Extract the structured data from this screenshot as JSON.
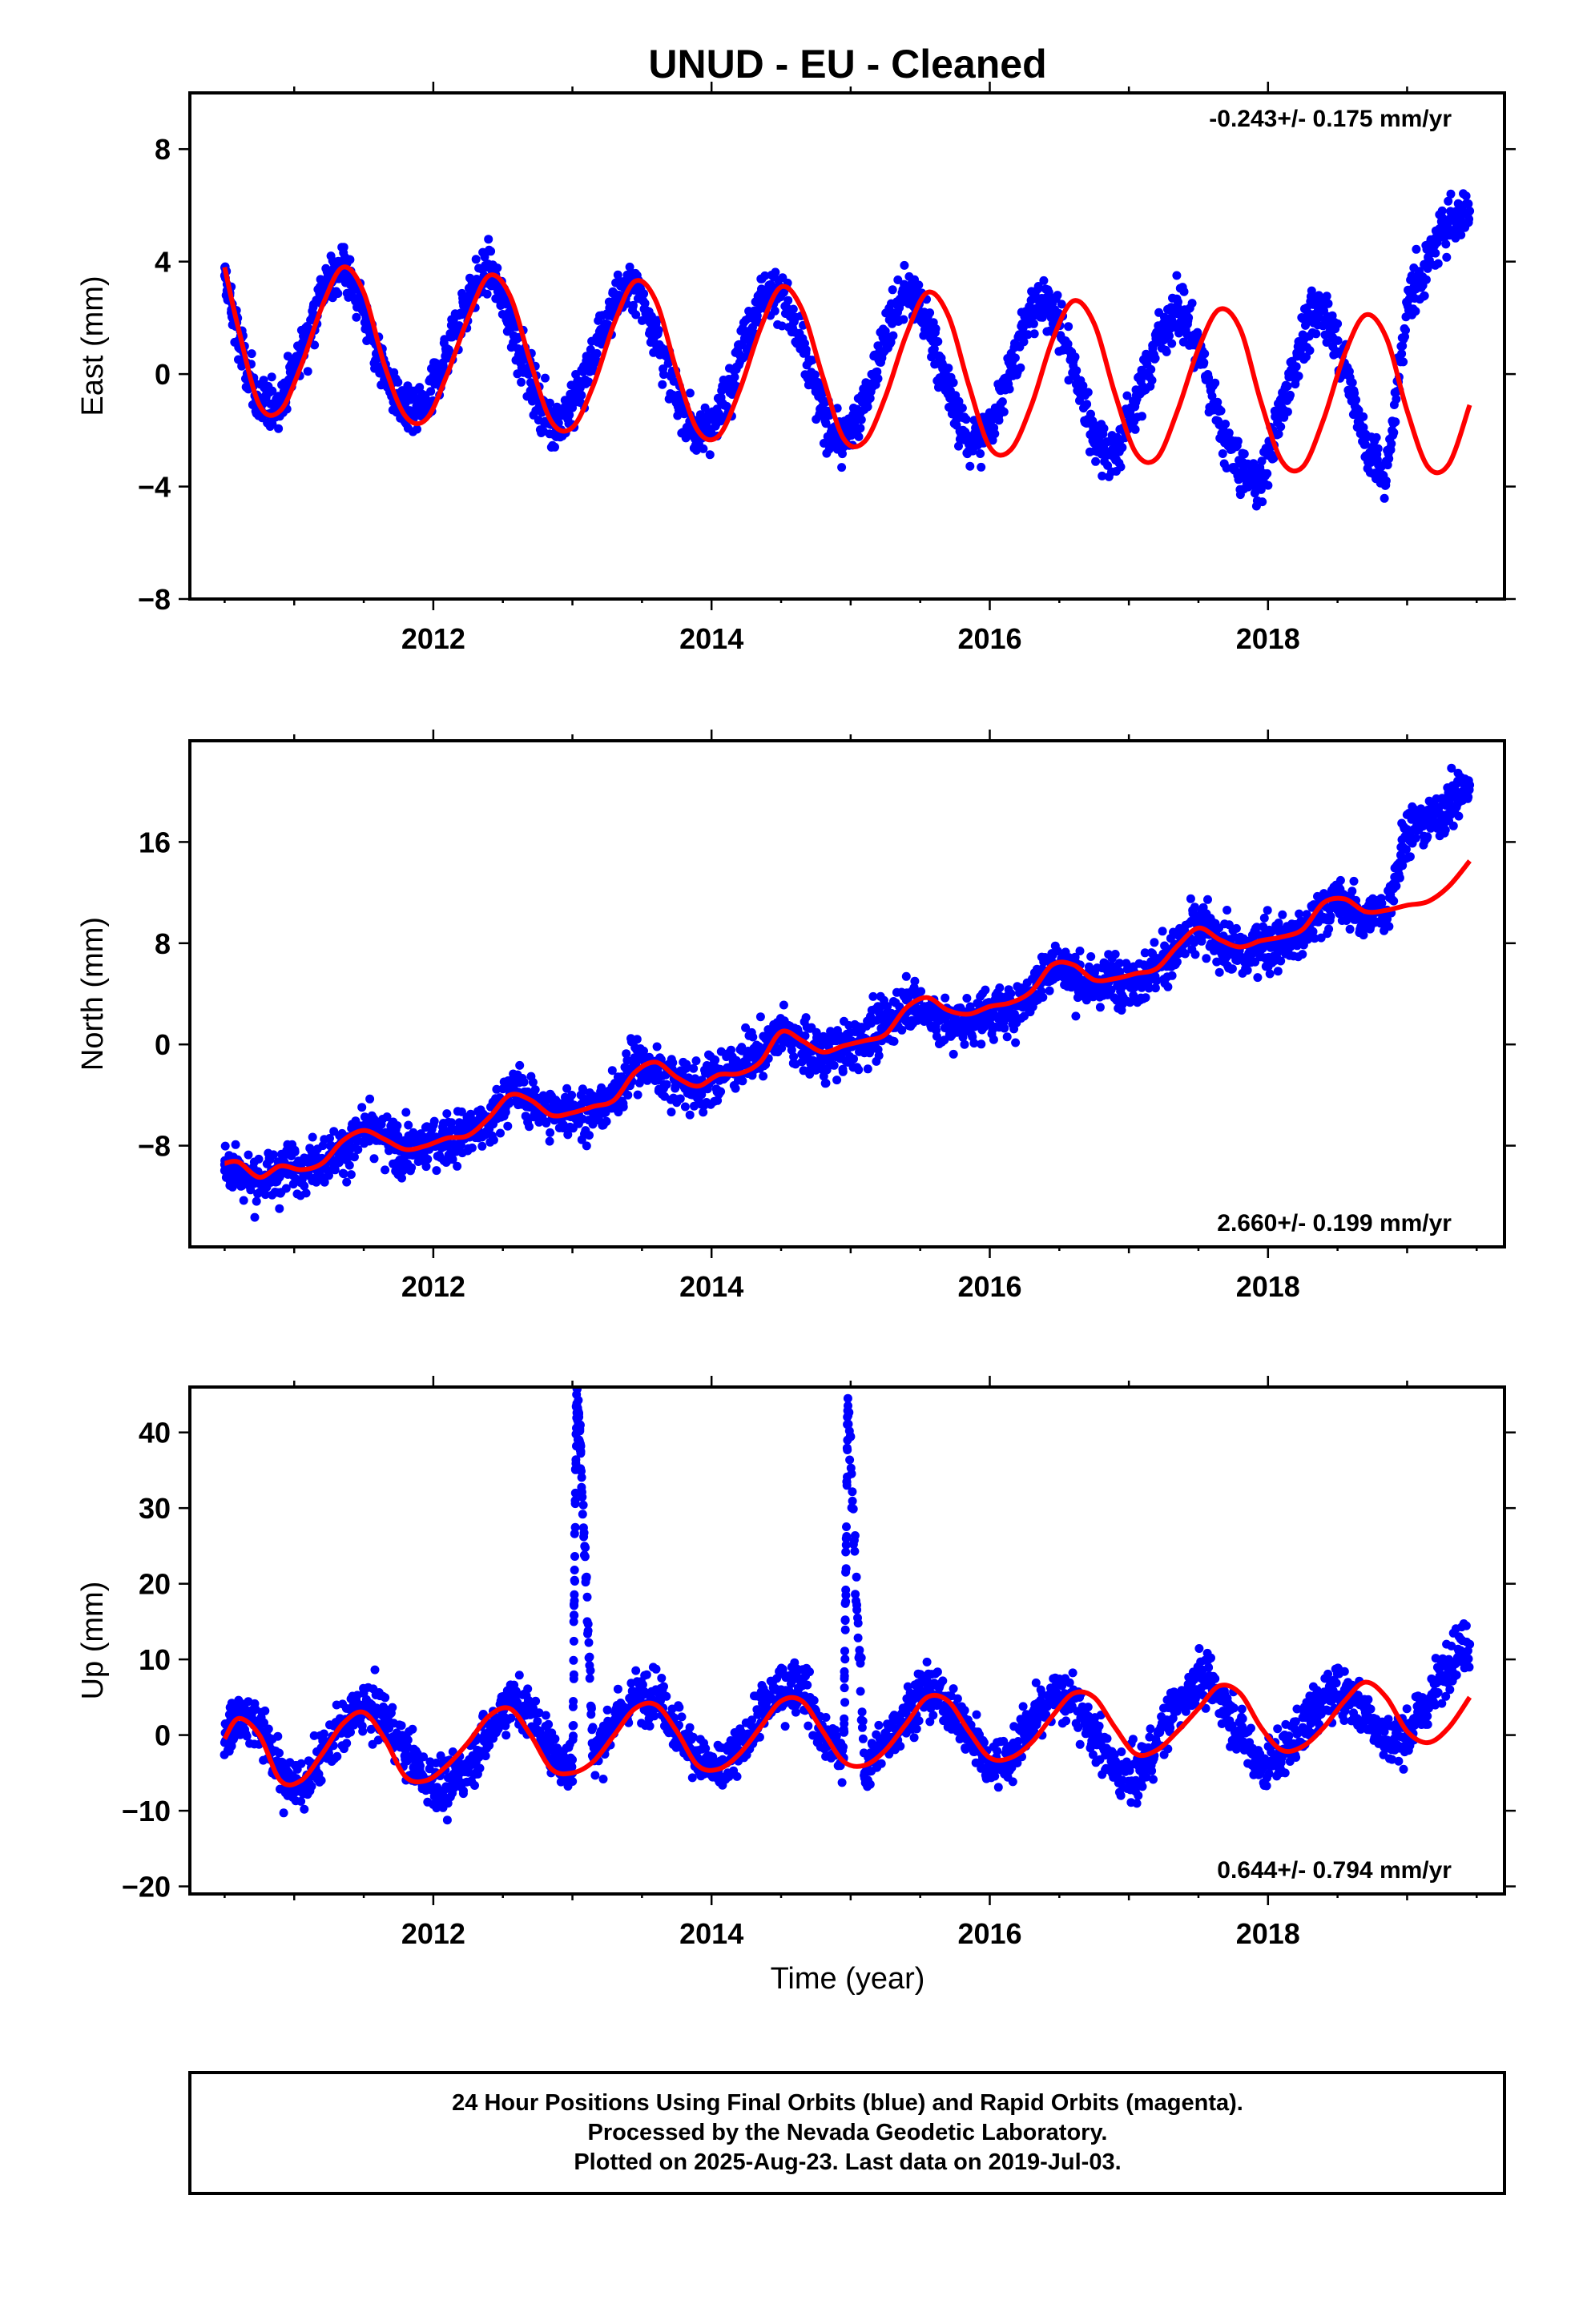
{
  "title": "UNUD  - EU - Cleaned",
  "x_axis_label": "Time (year)",
  "footer": {
    "line1": "24 Hour Positions Using Final Orbits (blue) and Rapid Orbits (magenta).",
    "line2": "Processed by the Nevada Geodetic Laboratory.",
    "line3": "Plotted on 2025-Aug-23. Last data on 2019-Jul-03."
  },
  "colors": {
    "data_points": "#0000ff",
    "model_fit": "#ff0000",
    "frame": "#000000"
  },
  "chart_data": [
    {
      "type": "scatter",
      "ylabel": "East (mm)",
      "rate_text": "-0.243+/- 0.175 mm/yr",
      "rate_position": "top-right",
      "xlim": [
        2010.25,
        2019.7
      ],
      "ylim": [
        -8,
        10
      ],
      "x_ticks": [
        2012,
        2014,
        2016,
        2018
      ],
      "y_ticks": [
        -8,
        -4,
        0,
        4,
        8
      ],
      "grid": false,
      "series": [
        {
          "kind": "daily positions (scatter)",
          "x": [
            2010.5,
            2010.6,
            2010.75,
            2010.9,
            2011.05,
            2011.2,
            2011.35,
            2011.5,
            2011.65,
            2011.8,
            2011.95,
            2012.1,
            2012.25,
            2012.4,
            2012.55,
            2012.7,
            2012.85,
            2013.0,
            2013.15,
            2013.3,
            2013.45,
            2013.6,
            2013.75,
            2013.9,
            2014.05,
            2014.2,
            2014.35,
            2014.5,
            2014.65,
            2014.8,
            2014.95,
            2015.1,
            2015.25,
            2015.4,
            2015.55,
            2015.7,
            2015.85,
            2016.0,
            2016.15,
            2016.3,
            2016.45,
            2016.6,
            2016.75,
            2016.9,
            2017.05,
            2017.2,
            2017.35,
            2017.5,
            2017.65,
            2017.8,
            2017.95,
            2018.1,
            2018.25,
            2018.4,
            2018.55,
            2018.7,
            2018.85,
            2019.0,
            2019.15,
            2019.3,
            2019.45
          ],
          "y": [
            3.5,
            1.2,
            -1.2,
            -1.0,
            0.8,
            2.9,
            4.0,
            2.2,
            0.0,
            -1.5,
            -1.1,
            0.9,
            2.7,
            3.8,
            2.0,
            -0.3,
            -1.8,
            -1.2,
            0.6,
            2.6,
            3.2,
            1.5,
            -0.8,
            -2.2,
            -1.4,
            0.7,
            2.8,
            3.0,
            0.9,
            -1.5,
            -2.4,
            -1.0,
            1.4,
            3.0,
            1.9,
            -0.6,
            -2.5,
            -1.9,
            0.3,
            2.3,
            2.5,
            0.3,
            -2.2,
            -2.9,
            -1.0,
            1.2,
            2.4,
            1.0,
            -1.8,
            -3.5,
            -3.8,
            -1.2,
            1.4,
            2.4,
            0.4,
            -2.5,
            -3.8,
            2.5,
            4.0,
            5.5,
            5.8
          ]
        },
        {
          "kind": "model fit (line)",
          "x": [
            2010.5,
            2010.6,
            2010.75,
            2010.9,
            2011.05,
            2011.2,
            2011.35,
            2011.5,
            2011.65,
            2011.8,
            2011.95,
            2012.1,
            2012.25,
            2012.4,
            2012.55,
            2012.7,
            2012.85,
            2013.0,
            2013.15,
            2013.3,
            2013.45,
            2013.6,
            2013.75,
            2013.9,
            2014.05,
            2014.2,
            2014.35,
            2014.5,
            2014.65,
            2014.8,
            2014.95,
            2015.1,
            2015.25,
            2015.4,
            2015.55,
            2015.7,
            2015.85,
            2016.0,
            2016.15,
            2016.3,
            2016.45,
            2016.6,
            2016.75,
            2016.9,
            2017.05,
            2017.2,
            2017.35,
            2017.5,
            2017.65,
            2017.8,
            2017.95,
            2018.1,
            2018.25,
            2018.4,
            2018.55,
            2018.7,
            2018.85,
            2019.0,
            2019.15,
            2019.3,
            2019.45
          ],
          "y": [
            3.8,
            1.6,
            -1.1,
            -1.3,
            0.3,
            2.4,
            3.8,
            2.9,
            0.3,
            -1.5,
            -1.6,
            0.0,
            2.0,
            3.5,
            2.8,
            0.4,
            -1.7,
            -1.9,
            -0.4,
            1.8,
            3.3,
            2.6,
            0.1,
            -2.0,
            -2.2,
            -0.6,
            1.6,
            3.1,
            2.3,
            -0.1,
            -2.3,
            -2.4,
            -0.8,
            1.4,
            2.9,
            2.1,
            -0.4,
            -2.6,
            -2.7,
            -1.1,
            1.2,
            2.6,
            1.8,
            -0.7,
            -2.8,
            -3.0,
            -1.3,
            0.9,
            2.3,
            1.6,
            -1.0,
            -3.1,
            -3.3,
            -1.6,
            0.7,
            2.1,
            1.3,
            -1.3,
            -3.3,
            -3.2,
            -1.1
          ]
        }
      ]
    },
    {
      "type": "scatter",
      "ylabel": "North (mm)",
      "rate_text": "2.660+/- 0.199 mm/yr",
      "rate_position": "bottom-right",
      "xlim": [
        2010.25,
        2019.7
      ],
      "ylim": [
        -16,
        24
      ],
      "x_ticks": [
        2012,
        2014,
        2016,
        2018
      ],
      "y_ticks": [
        -8,
        0,
        8,
        16
      ],
      "grid": false,
      "series": [
        {
          "kind": "daily positions (scatter)",
          "x": [
            2010.5,
            2010.6,
            2010.75,
            2010.9,
            2011.05,
            2011.2,
            2011.35,
            2011.5,
            2011.65,
            2011.8,
            2011.95,
            2012.1,
            2012.25,
            2012.4,
            2012.55,
            2012.7,
            2012.85,
            2013.0,
            2013.15,
            2013.3,
            2013.45,
            2013.6,
            2013.75,
            2013.9,
            2014.05,
            2014.2,
            2014.35,
            2014.5,
            2014.65,
            2014.8,
            2014.95,
            2015.1,
            2015.25,
            2015.4,
            2015.55,
            2015.7,
            2015.85,
            2016.0,
            2016.15,
            2016.3,
            2016.45,
            2016.6,
            2016.75,
            2016.9,
            2017.05,
            2017.2,
            2017.35,
            2017.5,
            2017.65,
            2017.8,
            2017.95,
            2018.1,
            2018.25,
            2018.4,
            2018.55,
            2018.7,
            2018.85,
            2019.0,
            2019.15,
            2019.3,
            2019.45
          ],
          "y": [
            -9.5,
            -10.0,
            -11.0,
            -10.0,
            -9.5,
            -9.0,
            -8.5,
            -7.0,
            -7.5,
            -8.5,
            -8.0,
            -7.5,
            -7.0,
            -6.5,
            -3.5,
            -4.5,
            -5.5,
            -5.0,
            -5.5,
            -4.0,
            -1.5,
            -2.0,
            -3.0,
            -3.5,
            -2.5,
            -1.5,
            -0.5,
            1.0,
            0.0,
            -1.0,
            -0.5,
            0.5,
            1.5,
            3.5,
            2.5,
            1.5,
            2.0,
            2.5,
            2.5,
            4.0,
            6.5,
            5.5,
            4.5,
            5.5,
            5.0,
            6.0,
            7.5,
            9.5,
            8.0,
            7.0,
            8.0,
            8.0,
            8.5,
            11.0,
            11.0,
            10.0,
            10.5,
            17.0,
            17.5,
            19.0,
            20.5
          ]
        },
        {
          "kind": "model fit (line)",
          "x": [
            2010.5,
            2010.6,
            2010.75,
            2010.9,
            2011.05,
            2011.2,
            2011.35,
            2011.5,
            2011.65,
            2011.8,
            2011.95,
            2012.1,
            2012.25,
            2012.4,
            2012.55,
            2012.7,
            2012.85,
            2013.0,
            2013.15,
            2013.3,
            2013.45,
            2013.6,
            2013.75,
            2013.9,
            2014.05,
            2014.2,
            2014.35,
            2014.5,
            2014.65,
            2014.8,
            2014.95,
            2015.1,
            2015.25,
            2015.4,
            2015.55,
            2015.7,
            2015.85,
            2016.0,
            2016.15,
            2016.3,
            2016.45,
            2016.6,
            2016.75,
            2016.9,
            2017.05,
            2017.2,
            2017.35,
            2017.5,
            2017.65,
            2017.8,
            2017.95,
            2018.1,
            2018.25,
            2018.4,
            2018.55,
            2018.7,
            2018.85,
            2019.0,
            2019.15,
            2019.3,
            2019.45
          ],
          "y": [
            -9.4,
            -9.3,
            -10.5,
            -9.6,
            -9.9,
            -9.4,
            -7.6,
            -6.8,
            -7.5,
            -8.3,
            -8.0,
            -7.4,
            -7.2,
            -5.8,
            -4.0,
            -4.4,
            -5.6,
            -5.4,
            -4.9,
            -4.4,
            -2.2,
            -1.4,
            -2.6,
            -3.3,
            -2.4,
            -2.3,
            -1.4,
            1.0,
            0.3,
            -0.6,
            -0.1,
            0.3,
            0.8,
            2.9,
            3.7,
            2.7,
            2.4,
            3.0,
            3.3,
            4.2,
            6.3,
            6.3,
            5.1,
            5.2,
            5.6,
            6.0,
            7.8,
            9.2,
            8.3,
            7.7,
            8.2,
            8.5,
            9.1,
            11.2,
            11.5,
            10.5,
            10.6,
            11.0,
            11.3,
            12.5,
            14.5
          ]
        }
      ]
    },
    {
      "type": "scatter",
      "ylabel": "Up (mm)",
      "rate_text": "0.644+/- 0.794 mm/yr",
      "rate_position": "bottom-right",
      "xlim": [
        2010.25,
        2019.7
      ],
      "ylim": [
        -21,
        46
      ],
      "x_ticks": [
        2012,
        2014,
        2016,
        2018
      ],
      "y_ticks": [
        -20,
        -10,
        0,
        10,
        20,
        30,
        40
      ],
      "grid": false,
      "series": [
        {
          "kind": "daily positions (scatter)",
          "x": [
            2010.5,
            2010.6,
            2010.75,
            2010.9,
            2011.05,
            2011.2,
            2011.35,
            2011.5,
            2011.65,
            2011.8,
            2011.95,
            2012.1,
            2012.25,
            2012.4,
            2012.55,
            2012.7,
            2012.85,
            2013.0,
            2013.03,
            2013.06,
            2013.15,
            2013.3,
            2013.45,
            2013.6,
            2013.75,
            2013.9,
            2014.05,
            2014.2,
            2014.35,
            2014.5,
            2014.65,
            2014.8,
            2014.95,
            2014.98,
            2015.1,
            2015.25,
            2015.4,
            2015.55,
            2015.7,
            2015.85,
            2016.0,
            2016.15,
            2016.3,
            2016.45,
            2016.6,
            2016.75,
            2016.9,
            2017.05,
            2017.2,
            2017.35,
            2017.5,
            2017.65,
            2017.8,
            2017.95,
            2018.1,
            2018.25,
            2018.4,
            2018.55,
            2018.7,
            2018.85,
            2019.0,
            2019.15,
            2019.3,
            2019.45
          ],
          "y": [
            -1.0,
            3.0,
            1.5,
            -5.0,
            -7.0,
            -3.0,
            1.0,
            4.0,
            2.0,
            -2.0,
            -6.0,
            -7.0,
            -4.0,
            0.0,
            5.0,
            3.0,
            -2.0,
            -5.0,
            45.0,
            37.5,
            -3.0,
            2.0,
            5.0,
            6.0,
            1.0,
            -3.0,
            -5.0,
            -2.0,
            3.0,
            6.0,
            7.0,
            0.0,
            -3.0,
            44.5,
            -5.0,
            -1.0,
            3.0,
            6.0,
            4.0,
            0.0,
            -4.0,
            -3.0,
            2.0,
            5.0,
            5.0,
            0.0,
            -5.0,
            -6.0,
            -1.0,
            4.0,
            8.0,
            5.0,
            0.0,
            -4.0,
            -3.0,
            1.0,
            5.0,
            6.0,
            3.0,
            -1.0,
            0.0,
            4.0,
            10.0,
            12.0
          ]
        },
        {
          "kind": "model fit (line)",
          "x": [
            2010.5,
            2010.6,
            2010.75,
            2010.9,
            2011.05,
            2011.2,
            2011.35,
            2011.5,
            2011.65,
            2011.8,
            2011.95,
            2012.1,
            2012.25,
            2012.4,
            2012.55,
            2012.7,
            2012.85,
            2013.0,
            2013.15,
            2013.3,
            2013.45,
            2013.6,
            2013.75,
            2013.9,
            2014.05,
            2014.2,
            2014.35,
            2014.5,
            2014.65,
            2014.8,
            2014.95,
            2015.1,
            2015.25,
            2015.4,
            2015.55,
            2015.7,
            2015.85,
            2016.0,
            2016.15,
            2016.3,
            2016.45,
            2016.6,
            2016.75,
            2016.9,
            2017.05,
            2017.2,
            2017.35,
            2017.5,
            2017.65,
            2017.8,
            2017.95,
            2018.1,
            2018.25,
            2018.4,
            2018.55,
            2018.7,
            2018.85,
            2019.0,
            2019.15,
            2019.3,
            2019.45
          ],
          "y": [
            -0.5,
            2.2,
            0.0,
            -6.0,
            -6.0,
            -2.5,
            1.5,
            3.0,
            -0.5,
            -5.5,
            -6.0,
            -4.0,
            -1.0,
            2.5,
            3.5,
            0.0,
            -4.5,
            -5.0,
            -3.5,
            0.0,
            3.5,
            4.0,
            0.5,
            -4.0,
            -4.5,
            -2.5,
            1.0,
            4.5,
            4.5,
            0.5,
            -3.5,
            -4.0,
            -2.0,
            1.5,
            5.0,
            4.5,
            0.5,
            -3.0,
            -3.0,
            -1.0,
            2.5,
            5.5,
            5.0,
            1.0,
            -2.5,
            -2.0,
            0.5,
            3.5,
            6.5,
            5.5,
            1.0,
            -2.0,
            -1.5,
            1.0,
            4.5,
            7.0,
            5.0,
            0.5,
            -1.0,
            1.0,
            5.0
          ]
        }
      ]
    }
  ]
}
